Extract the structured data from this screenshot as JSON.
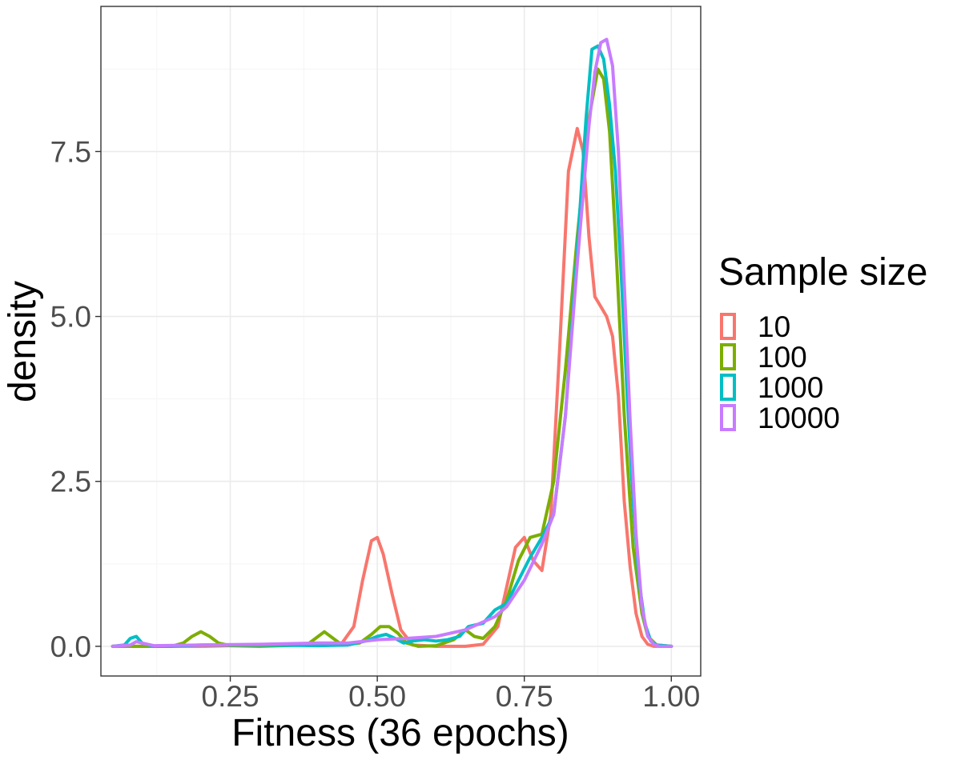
{
  "chart_data": {
    "type": "line",
    "xlabel": "Fitness (36 epochs)",
    "ylabel": "density",
    "xlim": [
      0.03,
      1.05
    ],
    "ylim": [
      -0.45,
      9.7
    ],
    "x_ticks": [
      0.25,
      0.5,
      0.75,
      1.0
    ],
    "x_tick_labels": [
      "0.25",
      "0.50",
      "0.75",
      "1.00"
    ],
    "y_ticks": [
      0.0,
      2.5,
      5.0,
      7.5
    ],
    "y_tick_labels": [
      "0.0",
      "2.5",
      "5.0",
      "7.5"
    ],
    "grid": true,
    "legend": {
      "title": "Sample size",
      "position": "right"
    },
    "series": [
      {
        "name": "10",
        "color": "#F8766D",
        "x": [
          0.05,
          0.2,
          0.44,
          0.46,
          0.475,
          0.49,
          0.5,
          0.51,
          0.525,
          0.54,
          0.56,
          0.6,
          0.65,
          0.68,
          0.705,
          0.72,
          0.735,
          0.75,
          0.765,
          0.78,
          0.795,
          0.81,
          0.825,
          0.84,
          0.85,
          0.86,
          0.87,
          0.88,
          0.89,
          0.9,
          0.91,
          0.92,
          0.93,
          0.94,
          0.95,
          0.96,
          0.97,
          0.98,
          1.0
        ],
        "y": [
          0.0,
          0.0,
          0.05,
          0.3,
          1.0,
          1.6,
          1.65,
          1.4,
          0.8,
          0.25,
          0.02,
          0.0,
          0.0,
          0.03,
          0.3,
          0.9,
          1.5,
          1.65,
          1.3,
          1.15,
          2.0,
          4.5,
          7.2,
          7.85,
          7.5,
          6.2,
          5.3,
          5.15,
          5.0,
          4.7,
          3.8,
          2.2,
          1.2,
          0.5,
          0.15,
          0.03,
          0.0,
          0.0,
          0.0
        ]
      },
      {
        "name": "100",
        "color": "#7CAE00",
        "x": [
          0.05,
          0.15,
          0.17,
          0.185,
          0.2,
          0.215,
          0.23,
          0.25,
          0.3,
          0.38,
          0.395,
          0.41,
          0.425,
          0.44,
          0.47,
          0.49,
          0.505,
          0.52,
          0.535,
          0.55,
          0.57,
          0.6,
          0.63,
          0.65,
          0.665,
          0.68,
          0.7,
          0.72,
          0.74,
          0.76,
          0.78,
          0.8,
          0.82,
          0.84,
          0.86,
          0.875,
          0.885,
          0.895,
          0.905,
          0.92,
          0.935,
          0.95,
          0.96,
          0.975,
          1.0
        ],
        "y": [
          0.0,
          0.0,
          0.05,
          0.15,
          0.22,
          0.15,
          0.05,
          0.01,
          0.0,
          0.02,
          0.12,
          0.22,
          0.12,
          0.02,
          0.05,
          0.18,
          0.3,
          0.3,
          0.2,
          0.05,
          0.0,
          0.01,
          0.1,
          0.25,
          0.15,
          0.12,
          0.3,
          0.7,
          1.3,
          1.65,
          1.7,
          2.5,
          4.2,
          6.2,
          8.0,
          8.75,
          8.6,
          7.8,
          6.2,
          3.5,
          1.5,
          0.5,
          0.15,
          0.02,
          0.0
        ]
      },
      {
        "name": "1000",
        "color": "#00BFC4",
        "x": [
          0.05,
          0.07,
          0.08,
          0.09,
          0.1,
          0.12,
          0.15,
          0.2,
          0.3,
          0.4,
          0.45,
          0.48,
          0.5,
          0.515,
          0.53,
          0.545,
          0.56,
          0.58,
          0.6,
          0.62,
          0.64,
          0.655,
          0.665,
          0.68,
          0.7,
          0.71,
          0.72,
          0.74,
          0.76,
          0.78,
          0.8,
          0.82,
          0.84,
          0.855,
          0.865,
          0.875,
          0.885,
          0.895,
          0.905,
          0.915,
          0.925,
          0.935,
          0.945,
          0.955,
          0.965,
          0.975,
          1.0
        ],
        "y": [
          0.0,
          0.02,
          0.12,
          0.15,
          0.05,
          0.0,
          0.0,
          0.02,
          0.02,
          0.01,
          0.02,
          0.08,
          0.15,
          0.18,
          0.12,
          0.05,
          0.08,
          0.1,
          0.08,
          0.1,
          0.15,
          0.3,
          0.32,
          0.35,
          0.55,
          0.6,
          0.65,
          1.0,
          1.35,
          1.65,
          2.0,
          3.5,
          6.0,
          8.0,
          9.05,
          9.1,
          8.9,
          8.2,
          7.2,
          5.6,
          3.8,
          2.2,
          1.0,
          0.35,
          0.08,
          0.02,
          0.0
        ]
      },
      {
        "name": "10000",
        "color": "#C77CFF",
        "x": [
          0.05,
          0.08,
          0.09,
          0.1,
          0.12,
          0.2,
          0.3,
          0.4,
          0.45,
          0.5,
          0.55,
          0.6,
          0.65,
          0.7,
          0.72,
          0.75,
          0.78,
          0.8,
          0.82,
          0.84,
          0.86,
          0.87,
          0.88,
          0.89,
          0.9,
          0.91,
          0.92,
          0.93,
          0.94,
          0.95,
          0.96,
          0.97,
          0.98,
          1.0
        ],
        "y": [
          0.0,
          0.02,
          0.07,
          0.05,
          0.01,
          0.02,
          0.03,
          0.05,
          0.05,
          0.1,
          0.12,
          0.15,
          0.25,
          0.45,
          0.6,
          1.0,
          1.55,
          2.0,
          3.5,
          5.8,
          7.9,
          8.7,
          9.15,
          9.2,
          8.8,
          7.5,
          5.5,
          3.4,
          1.7,
          0.6,
          0.15,
          0.03,
          0.0,
          0.0
        ]
      }
    ]
  }
}
